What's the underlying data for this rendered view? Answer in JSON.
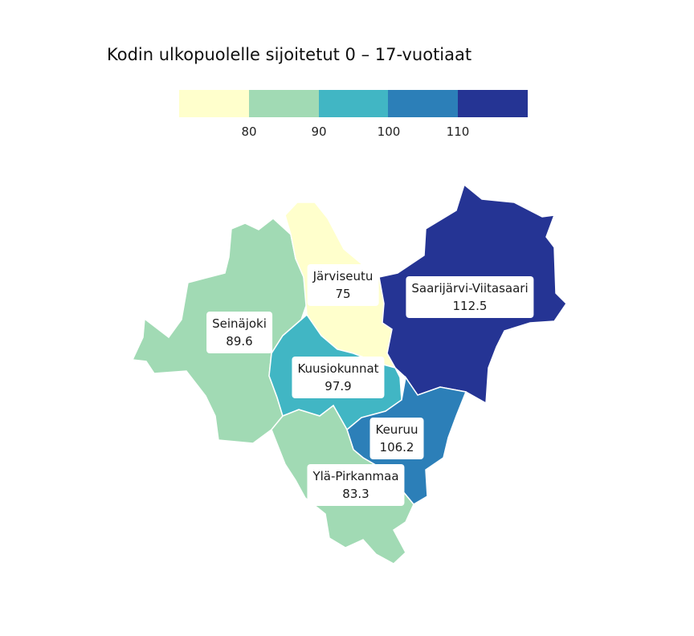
{
  "title": "Kodin ulkopuolelle sijoitetut 0 – 17-vuotiaat",
  "legend": {
    "colors": [
      "#ffffcc",
      "#a1dab4",
      "#41b6c4",
      "#2c7fb8",
      "#253494"
    ],
    "ticks": [
      "80",
      "90",
      "100",
      "110"
    ]
  },
  "regions": [
    {
      "name": "Järviseutu",
      "value": "75",
      "color": "#ffffcc"
    },
    {
      "name": "Saarijärvi-Viitasaari",
      "value": "112.5",
      "color": "#253494"
    },
    {
      "name": "Seinäjoki",
      "value": "89.6",
      "color": "#a1dab4"
    },
    {
      "name": "Kuusiokunnat",
      "value": "97.9",
      "color": "#41b6c4"
    },
    {
      "name": "Keuruu",
      "value": "106.2",
      "color": "#2c7fb8"
    },
    {
      "name": "Ylä-Pirkanmaa",
      "value": "83.3",
      "color": "#a1dab4"
    }
  ]
}
